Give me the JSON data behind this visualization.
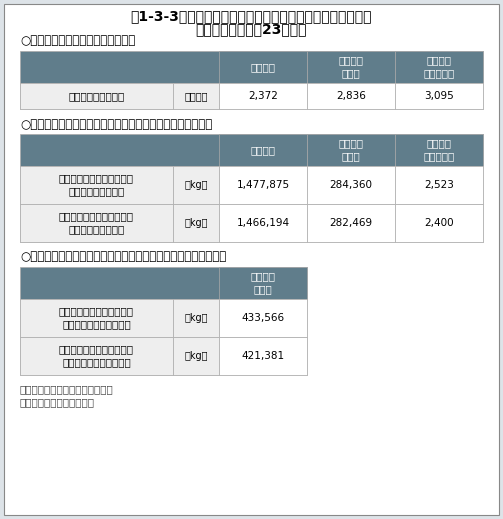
{
  "title_line1": "表1-3-3　家電リサイクル法対象製品からのフロン類の回収",
  "title_line2": "量・破壊量（平成23年度）",
  "section1_title": "○廃家電４品目の再商品化実施状況",
  "section2_title": "○冷媒として使用されていたフロン類の回収重量、破壊重量",
  "section3_title": "○断熱材に含まれる液化回収したフロン類の回収重量、破壊重量",
  "note1": "注：値は全て小数点以下を切捨て",
  "note2": "資料：環境省、経済産業省",
  "header_bg": "#607d8b",
  "header_text": "#ffffff",
  "row_bg_light": "#eeeeee",
  "row_bg_white": "#ffffff",
  "border_color": "#aaaaaa",
  "bg_color": "#dde3e8",
  "col_headers": [
    "エアコン",
    "冷蔵庫・\n冷凍庫",
    "洗濯機・\n衣類乾燥機"
  ],
  "table1_row_label": "再商品化等処理台数",
  "table1_row_unit": "【千台】",
  "table1_values": [
    "2,372",
    "2,836",
    "3,095"
  ],
  "table2_row1_label": "冷媒として使用されていた\nフロン類の回収重量",
  "table2_row1_unit": "【kg】",
  "table2_row1_values": [
    "1,477,875",
    "284,360",
    "2,523"
  ],
  "table2_row2_label": "冷媒として使用されていた\nフロン類の破壊重量",
  "table2_row2_unit": "【kg】",
  "table2_row2_values": [
    "1,466,194",
    "282,469",
    "2,400"
  ],
  "table3_col_header": "冷蔵庫・\n冷凍庫",
  "table3_row1_label": "断熱材に含まれる液化回収\nしたフロン類の回収重量",
  "table3_row1_unit": "【kg】",
  "table3_row1_value": "433,566",
  "table3_row2_label": "断熱材に含まれる液化回収\nしたフロン類の破壊重量",
  "table3_row2_unit": "【kg】",
  "table3_row2_value": "421,381"
}
